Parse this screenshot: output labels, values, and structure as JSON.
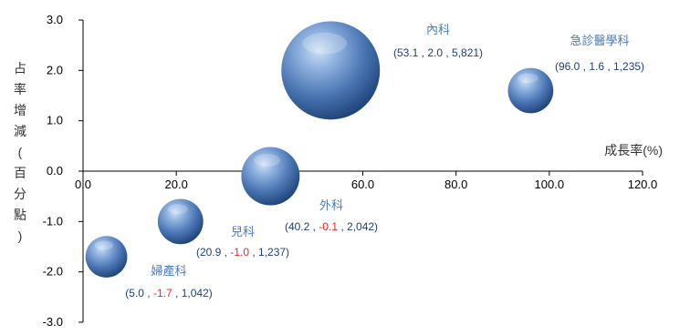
{
  "chart_data": {
    "type": "bubble",
    "xlabel": "成長率(%)",
    "ylabel": "占率增減(百分點)",
    "xlim": [
      0,
      120
    ],
    "ylim": [
      -3,
      3
    ],
    "x_ticks": [
      "0.0",
      "20.0",
      "40.0",
      "60.0",
      "80.0",
      "100.0",
      "120.0"
    ],
    "y_ticks": [
      "3.0",
      "2.0",
      "1.0",
      "0.0",
      "-1.0",
      "-2.0",
      "-3.0"
    ],
    "negative_color": "#e8262a",
    "label_color": "#4a7ab5",
    "value_color": "#1f3f78",
    "points": [
      {
        "name": "內科",
        "x": 53.1,
        "y": 2.0,
        "size": 5821,
        "x_text": "53.1",
        "y_text": "2.0",
        "size_text": "5,821"
      },
      {
        "name": "急診醫學科",
        "x": 96.0,
        "y": 1.6,
        "size": 1235,
        "x_text": "96.0",
        "y_text": "1.6",
        "size_text": "1,235"
      },
      {
        "name": "外科",
        "x": 40.2,
        "y": -0.1,
        "size": 2042,
        "x_text": "40.2",
        "y_text": "-0.1",
        "size_text": "2,042"
      },
      {
        "name": "兒科",
        "x": 20.9,
        "y": -1.0,
        "size": 1237,
        "x_text": "20.9",
        "y_text": "-1.0",
        "size_text": "1,237"
      },
      {
        "name": "婦產科",
        "x": 5.0,
        "y": -1.7,
        "size": 1042,
        "x_text": "5.0",
        "y_text": "-1.7",
        "size_text": "1,042"
      }
    ]
  }
}
